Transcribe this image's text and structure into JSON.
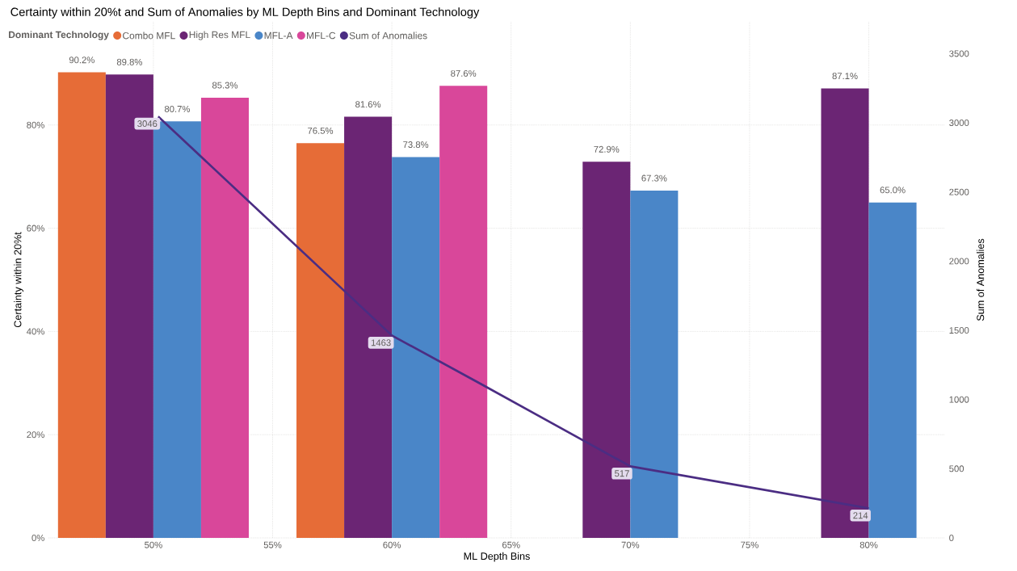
{
  "chart_data": {
    "type": "bar",
    "title": "Certainty within 20%t and Sum of Anomalies by ML Depth Bins and Dominant Technology",
    "xlabel": "ML Depth Bins",
    "ylabel": "Certainty within 20%t",
    "y2label": "Sum of Anomalies",
    "legend_title": "Dominant Technology",
    "legend": "top left",
    "grid": true,
    "x": [
      50,
      60,
      70,
      80
    ],
    "xlim": [
      45.6,
      83.2
    ],
    "xticks": [
      {
        "value": 50,
        "label": "50%"
      },
      {
        "value": 55,
        "label": "55%"
      },
      {
        "value": 60,
        "label": "60%"
      },
      {
        "value": 65,
        "label": "65%"
      },
      {
        "value": 70,
        "label": "70%"
      },
      {
        "value": 75,
        "label": "75%"
      },
      {
        "value": 80,
        "label": "80%"
      }
    ],
    "ylim": [
      0,
      100
    ],
    "yticks": [
      {
        "value": 0,
        "label": "0%"
      },
      {
        "value": 20,
        "label": "20%"
      },
      {
        "value": 40,
        "label": "40%"
      },
      {
        "value": 60,
        "label": "60%"
      },
      {
        "value": 80,
        "label": "80%"
      }
    ],
    "y2lim": [
      0,
      3730
    ],
    "y2ticks": [
      0,
      500,
      1000,
      1500,
      2000,
      2500,
      3000,
      3500
    ],
    "series": [
      {
        "name": "Combo MFL",
        "color": "#e66c37",
        "values": [
          90.2,
          76.5,
          null,
          null
        ],
        "value_labels": [
          "90.2%",
          "76.5%",
          null,
          null
        ]
      },
      {
        "name": "High Res MFL",
        "color": "#6b2574",
        "values": [
          89.8,
          81.6,
          72.9,
          87.1
        ],
        "value_labels": [
          "89.8%",
          "81.6%",
          "72.9%",
          "87.1%"
        ]
      },
      {
        "name": "MFL-A",
        "color": "#4a86c8",
        "values": [
          80.7,
          73.8,
          67.3,
          65.0
        ],
        "value_labels": [
          "80.7%",
          "73.8%",
          "67.3%",
          "65.0%"
        ]
      },
      {
        "name": "MFL-C",
        "color": "#d9479a",
        "values": [
          85.3,
          87.6,
          null,
          null
        ],
        "value_labels": [
          "85.3%",
          "87.6%",
          null,
          null
        ]
      },
      {
        "name": "Sum of Anomalies",
        "type": "line",
        "axis": "y2",
        "marker": "none",
        "color": "#4b2d83",
        "x": [
          50.2,
          60,
          63.6,
          70,
          80
        ],
        "values": [
          3046,
          1463,
          1125,
          517,
          214
        ],
        "value_labels": [
          "3046",
          "1463",
          null,
          "517",
          "214"
        ]
      }
    ]
  }
}
